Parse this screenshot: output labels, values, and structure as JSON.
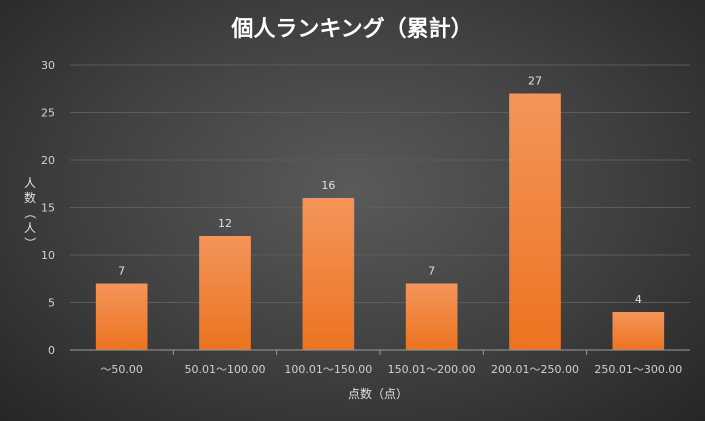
{
  "chart_data": {
    "type": "bar",
    "title": "個人ランキング（累計）",
    "xlabel": "点数（点）",
    "ylabel": "人数（人）",
    "categories": [
      "～50.00",
      "50.01～100.00",
      "100.01～150.00",
      "150.01～200.00",
      "200.01～250.00",
      "250.01～300.00"
    ],
    "values": [
      7,
      12,
      16,
      7,
      27,
      4
    ],
    "ylim": [
      0,
      30
    ],
    "yticks": [
      0,
      5,
      10,
      15,
      20,
      25,
      30
    ],
    "grid": true,
    "legend": "none",
    "bar_color": "#f08030"
  }
}
